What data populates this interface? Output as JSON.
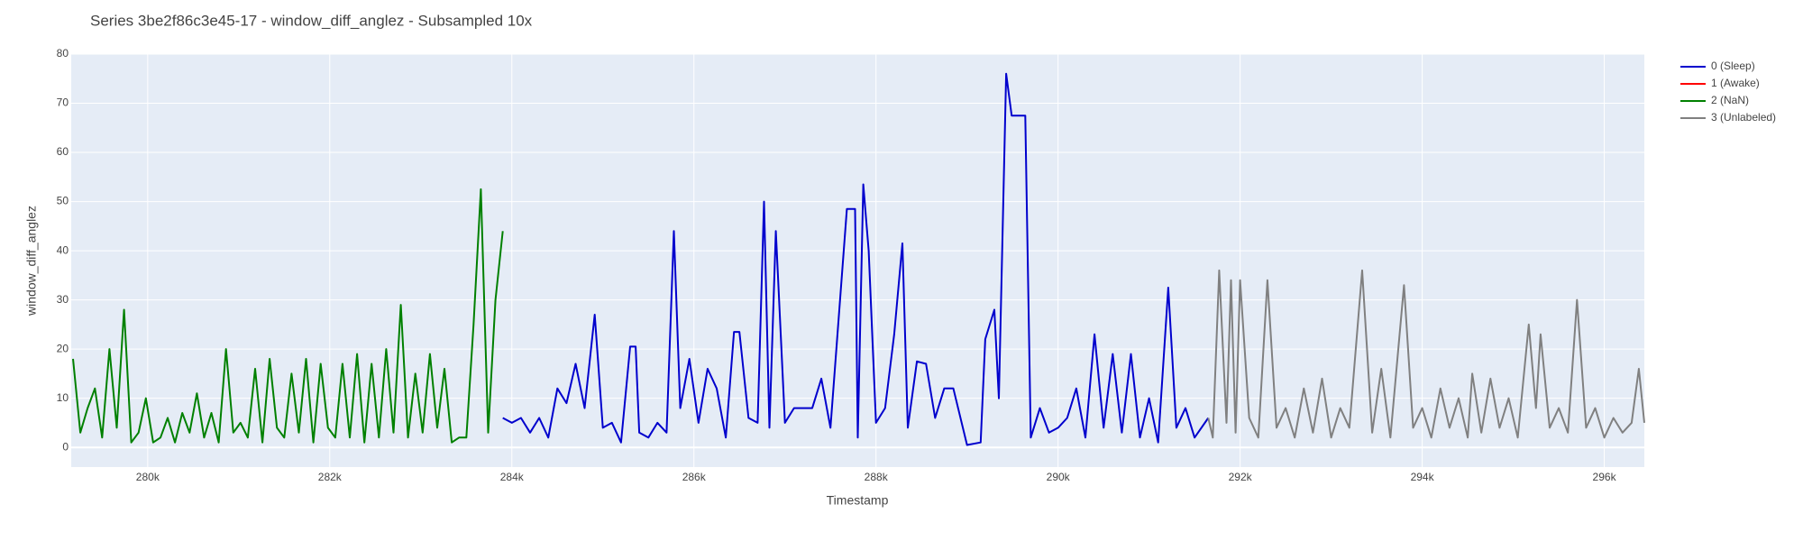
{
  "chart_data": {
    "type": "line",
    "title": "Series 3be2f86c3e45-17 - window_diff_anglez - Subsampled 10x",
    "x_label": "Timestamp",
    "y_label": "window_diff_anglez",
    "xlim": [
      279160,
      296440
    ],
    "ylim": [
      -4,
      80
    ],
    "xticks": [
      {
        "value": 280000,
        "label": "280k"
      },
      {
        "value": 282000,
        "label": "282k"
      },
      {
        "value": 284000,
        "label": "284k"
      },
      {
        "value": 286000,
        "label": "286k"
      },
      {
        "value": 288000,
        "label": "288k"
      },
      {
        "value": 290000,
        "label": "290k"
      },
      {
        "value": 292000,
        "label": "292k"
      },
      {
        "value": 294000,
        "label": "294k"
      },
      {
        "value": 296000,
        "label": "296k"
      }
    ],
    "yticks": [
      0,
      10,
      20,
      30,
      40,
      50,
      60,
      70,
      80
    ],
    "grid": true,
    "legend": "right",
    "series": [
      {
        "name": "0 (Sleep)",
        "color": "#0000cd",
        "x": [
          283900,
          284000,
          284100,
          284200,
          284300,
          284400,
          284500,
          284600,
          284700,
          284800,
          284910,
          285000,
          285100,
          285200,
          285300,
          285360,
          285400,
          285500,
          285600,
          285700,
          285780,
          285850,
          285950,
          286050,
          286150,
          286250,
          286350,
          286440,
          286500,
          286600,
          286700,
          286770,
          286830,
          286900,
          287000,
          287100,
          287200,
          287300,
          287400,
          287500,
          287680,
          287770,
          287800,
          287860,
          287920,
          288000,
          288100,
          288200,
          288290,
          288350,
          288450,
          288550,
          288650,
          288750,
          288850,
          289000,
          289150,
          289200,
          289300,
          289350,
          289430,
          289490,
          289640,
          289700,
          289800,
          289900,
          290000,
          290100,
          290200,
          290300,
          290400,
          290500,
          290600,
          290700,
          290800,
          290900,
          291000,
          291100,
          291210,
          291300,
          291400,
          291500,
          291650
        ],
        "values": [
          6,
          5,
          6,
          3,
          6,
          2,
          12,
          9,
          17,
          8,
          27,
          4,
          5,
          1,
          20.5,
          20.5,
          3,
          2,
          5,
          3,
          44,
          8,
          18,
          5,
          16,
          12,
          2,
          23.5,
          23.5,
          6,
          5,
          50,
          4,
          44,
          5,
          8,
          8,
          8,
          14,
          4,
          48.5,
          48.5,
          2,
          53.5,
          40,
          5,
          8,
          23,
          41.5,
          4,
          17.5,
          17,
          6,
          12,
          12,
          0.5,
          1,
          22,
          28,
          10,
          76,
          67.5,
          67.5,
          2,
          8,
          3,
          4,
          6,
          12,
          2,
          23,
          4,
          19,
          3,
          19,
          2,
          10,
          1,
          32.5,
          4,
          8,
          2,
          6
        ]
      },
      {
        "name": "1 (Awake)",
        "color": "#ff0000",
        "x": [],
        "values": []
      },
      {
        "name": "2 (NaN)",
        "color": "#008000",
        "x": [
          279180,
          279260,
          279340,
          279420,
          279500,
          279580,
          279660,
          279740,
          279820,
          279900,
          279980,
          280060,
          280140,
          280220,
          280300,
          280380,
          280460,
          280540,
          280620,
          280700,
          280780,
          280860,
          280940,
          281020,
          281100,
          281180,
          281260,
          281340,
          281420,
          281500,
          281580,
          281660,
          281740,
          281820,
          281900,
          281980,
          282060,
          282140,
          282220,
          282300,
          282380,
          282460,
          282540,
          282620,
          282700,
          282780,
          282860,
          282940,
          283020,
          283100,
          283180,
          283260,
          283340,
          283420,
          283500,
          283580,
          283660,
          283740,
          283820,
          283900
        ],
        "values": [
          18,
          3,
          8,
          12,
          2,
          20,
          4,
          28,
          1,
          3,
          10,
          1,
          2,
          6,
          1,
          7,
          3,
          11,
          2,
          7,
          1,
          20,
          3,
          5,
          2,
          16,
          1,
          18,
          4,
          2,
          15,
          3,
          18,
          1,
          17,
          4,
          2,
          17,
          2,
          19,
          1,
          17,
          2,
          20,
          3,
          29,
          2,
          15,
          3,
          19,
          4,
          16,
          1,
          2,
          2,
          25,
          52.5,
          3,
          30,
          44
        ]
      },
      {
        "name": "3 (Unlabeled)",
        "color": "#808080",
        "x": [
          291650,
          291700,
          291770,
          291850,
          291900,
          291950,
          292000,
          292100,
          292200,
          292300,
          292400,
          292500,
          292600,
          292700,
          292800,
          292900,
          293000,
          293100,
          293200,
          293340,
          293450,
          293550,
          293650,
          293800,
          293900,
          294000,
          294100,
          294200,
          294300,
          294400,
          294500,
          294550,
          294650,
          294750,
          294850,
          294950,
          295050,
          295170,
          295250,
          295300,
          295400,
          295500,
          295600,
          295700,
          295800,
          295900,
          296000,
          296100,
          296200,
          296300,
          296380,
          296440
        ],
        "values": [
          6,
          2,
          36,
          5,
          34,
          3,
          34,
          6,
          2,
          34,
          4,
          8,
          2,
          12,
          3,
          14,
          2,
          8,
          4,
          36,
          3,
          16,
          2,
          33,
          4,
          8,
          2,
          12,
          4,
          10,
          2,
          15,
          3,
          14,
          4,
          10,
          2,
          25,
          8,
          23,
          4,
          8,
          3,
          30,
          4,
          8,
          2,
          6,
          3,
          5,
          16,
          5
        ]
      }
    ]
  }
}
